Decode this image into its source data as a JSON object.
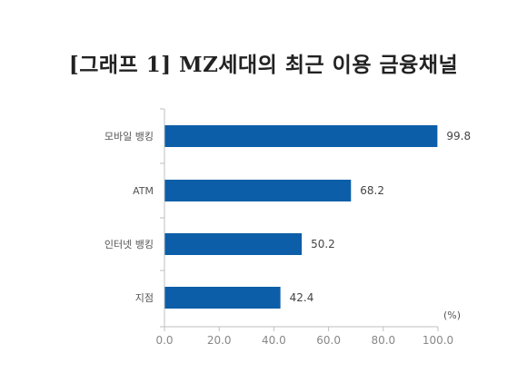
{
  "chart_data": {
    "type": "bar",
    "orientation": "horizontal",
    "title": "[그래프 1] MZ세대의 최근 이용 금융채널",
    "categories": [
      "모바일 뱅킹",
      "ATM",
      "인터넷 뱅킹",
      "지점"
    ],
    "values": [
      99.8,
      68.2,
      50.2,
      42.4
    ],
    "value_labels": [
      "99.8",
      "68.2",
      "50.2",
      "42.4"
    ],
    "unit_label": "(%)",
    "xlim": [
      0,
      100
    ],
    "xticks": [
      "0.0",
      "20.0",
      "40.0",
      "60.0",
      "80.0",
      "100.0"
    ],
    "grid": false,
    "bar_color": "#0c5ea8"
  }
}
